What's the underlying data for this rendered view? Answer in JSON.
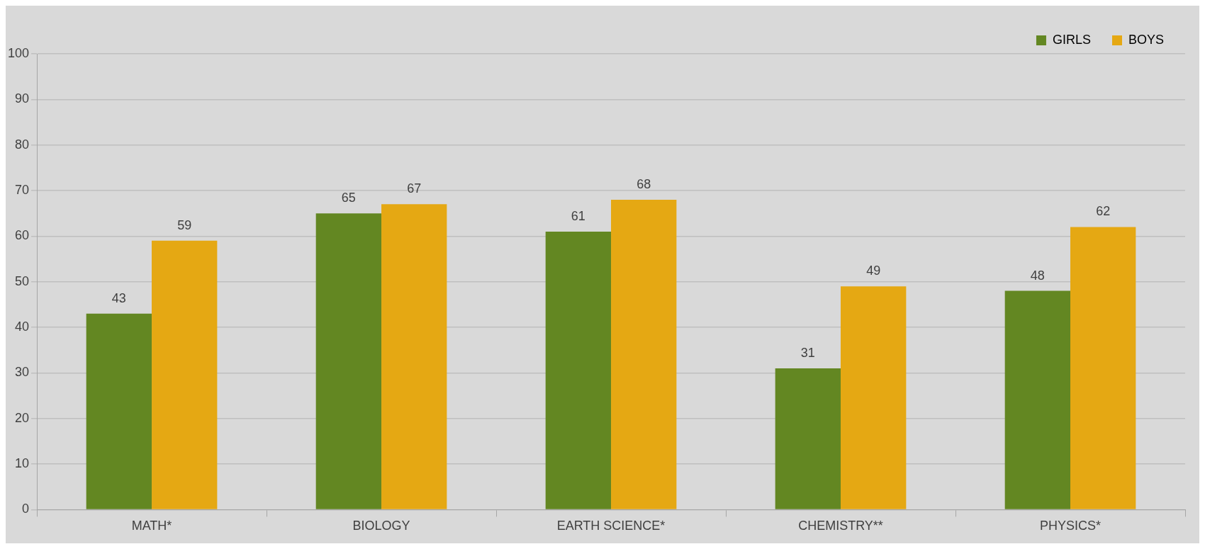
{
  "chart_data": {
    "type": "bar",
    "categories": [
      "MATH*",
      "BIOLOGY",
      "EARTH SCIENCE*",
      "CHEMISTRY**",
      "PHYSICS*"
    ],
    "series": [
      {
        "name": "GIRLS",
        "color": "#638722",
        "values": [
          43,
          65,
          61,
          31,
          48
        ]
      },
      {
        "name": "BOYS",
        "color": "#e5a813",
        "values": [
          59,
          67,
          68,
          49,
          62
        ]
      }
    ],
    "ylim": [
      0,
      100
    ],
    "yticks": [
      0,
      10,
      20,
      30,
      40,
      50,
      60,
      70,
      80,
      90,
      100
    ],
    "grid": "y",
    "legend": "top right",
    "data_labels": true
  }
}
